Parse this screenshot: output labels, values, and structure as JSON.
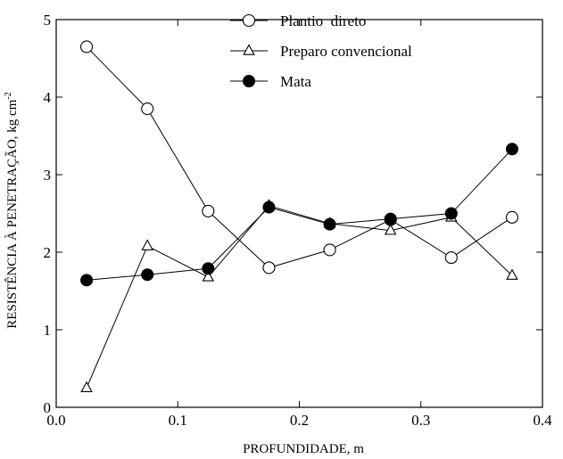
{
  "chart_data": {
    "type": "line",
    "xlabel": "PROFUNDIDADE, m",
    "ylabel": "RESISTÊNCIA À PENETRAÇÃO, kg cm",
    "ylabel_sup": "-2",
    "xlim": [
      0.0,
      0.4
    ],
    "ylim": [
      0,
      5
    ],
    "xticks": [
      0.0,
      0.1,
      0.2,
      0.3,
      0.4
    ],
    "xtick_labels": [
      "0.0",
      "0.1",
      "0.2",
      "0.3",
      "0.4"
    ],
    "yticks": [
      0,
      1,
      2,
      3,
      4,
      5
    ],
    "ytick_labels": [
      "0",
      "1",
      "2",
      "3",
      "4",
      "5"
    ],
    "grid": false,
    "legend_position": "top-center",
    "series": [
      {
        "name": "Plantio  direto",
        "marker": "open-circle",
        "x": [
          0.025,
          0.075,
          0.125,
          0.175,
          0.225,
          0.275,
          0.325,
          0.375
        ],
        "values": [
          4.65,
          3.85,
          2.53,
          1.8,
          2.03,
          2.42,
          1.93,
          2.45
        ]
      },
      {
        "name": "Preparo convencional",
        "marker": "open-triangle",
        "x": [
          0.025,
          0.075,
          0.125,
          0.175,
          0.225,
          0.275,
          0.325,
          0.375
        ],
        "values": [
          0.25,
          2.08,
          1.68,
          2.6,
          2.37,
          2.28,
          2.45,
          1.7
        ]
      },
      {
        "name": "Mata",
        "marker": "filled-circle",
        "x": [
          0.025,
          0.075,
          0.125,
          0.175,
          0.225,
          0.275,
          0.325,
          0.375
        ],
        "values": [
          1.64,
          1.71,
          1.79,
          2.58,
          2.36,
          2.43,
          2.5,
          3.33
        ]
      }
    ]
  }
}
